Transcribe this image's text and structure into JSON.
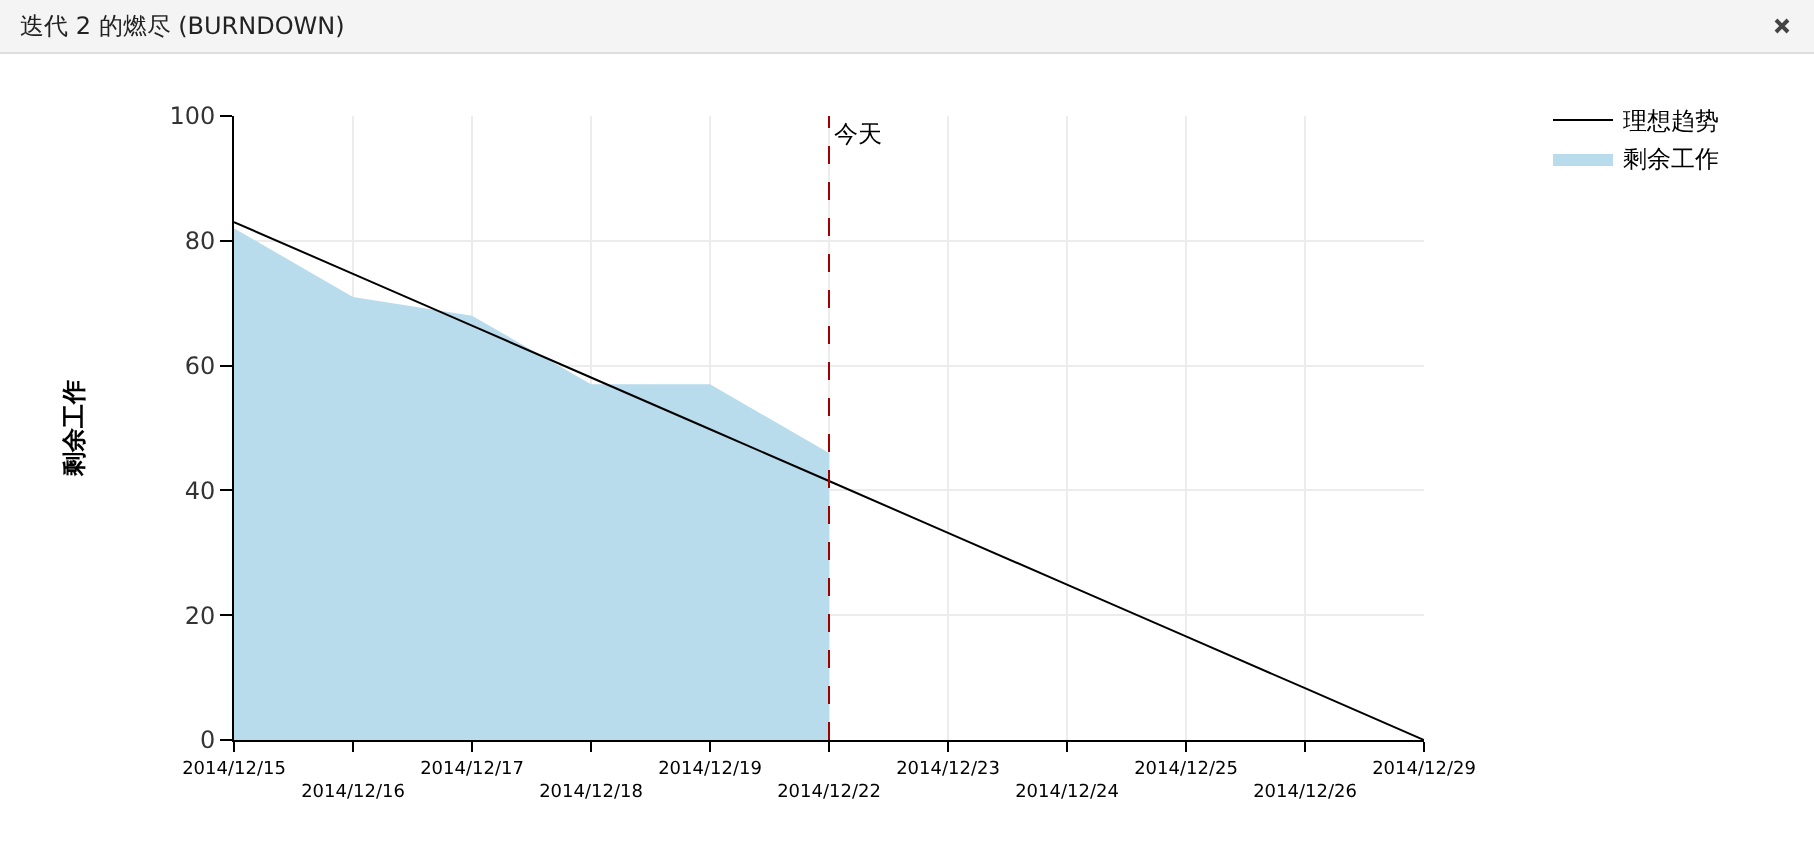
{
  "chart_data": {
    "type": "area",
    "title": "迭代 2 的燃尽 (BURNDOWN)",
    "ylabel": "剩余工作",
    "categories": [
      "2014/12/15",
      "2014/12/16",
      "2014/12/17",
      "2014/12/18",
      "2014/12/19",
      "2014/12/22",
      "2014/12/23",
      "2014/12/24",
      "2014/12/25",
      "2014/12/26",
      "2014/12/29"
    ],
    "series": [
      {
        "name": "理想趋势",
        "type": "line",
        "color": "#000000",
        "values": [
          83,
          74.7,
          66.4,
          58.1,
          49.8,
          41.5,
          33.2,
          24.9,
          16.6,
          8.3,
          0
        ]
      },
      {
        "name": "剩余工作",
        "color": "#b8dcec",
        "values": [
          82,
          71,
          68,
          57,
          57,
          46,
          null,
          null,
          null,
          null,
          null
        ]
      }
    ],
    "ylim": [
      0,
      100
    ],
    "yticks": [
      0,
      20,
      40,
      60,
      80,
      100
    ],
    "ref_lines": [
      {
        "axis": "x",
        "value": "2014/12/22",
        "label": "今天",
        "color": "#a00000",
        "line_style": "dashed"
      }
    ],
    "grid": true,
    "legend": "top right"
  }
}
